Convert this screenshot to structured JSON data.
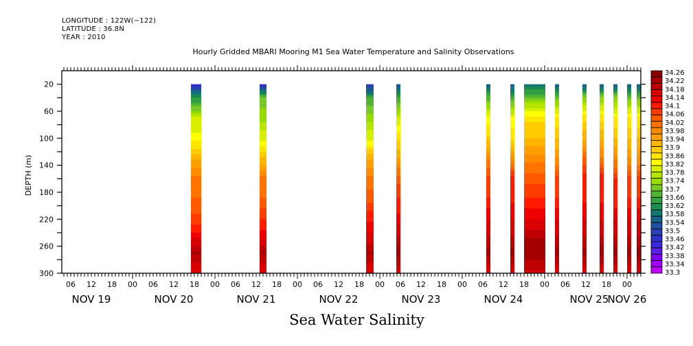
{
  "header": {
    "longitude": "LONGITUDE : 122W(−122)",
    "latitude": "LATITUDE : 36.8N",
    "year": "YEAR : 2010"
  },
  "chart_data": {
    "type": "heatmap",
    "title": "Hourly Gridded MBARI Mooring M1 Sea Water Temperature and Salinity Observations",
    "xlabel": "Sea Water Salinity",
    "ylabel": "DEPTH (m)",
    "y_ticks": [
      20,
      60,
      100,
      140,
      180,
      220,
      260,
      300
    ],
    "y_minor_ticks": [
      40,
      80,
      120,
      160,
      200,
      240,
      280
    ],
    "ylim": [
      0,
      300
    ],
    "y_inverted": true,
    "x_start_hours": 3.4,
    "x_end_hours": 172.0,
    "x_hour_labels": [
      "06",
      "12",
      "18",
      "00",
      "06",
      "12",
      "18",
      "00",
      "06",
      "12",
      "18",
      "00",
      "06",
      "12",
      "18",
      "00",
      "06",
      "12",
      "18",
      "00",
      "06",
      "12",
      "18",
      "00",
      "06",
      "12",
      "18",
      "00"
    ],
    "x_hour_label_hours": [
      6,
      12,
      18,
      24,
      30,
      36,
      42,
      48,
      54,
      60,
      66,
      72,
      78,
      84,
      90,
      96,
      102,
      108,
      114,
      120,
      126,
      132,
      138,
      144,
      150,
      156,
      162,
      168
    ],
    "x_day_labels": [
      {
        "label": "NOV 19",
        "hour": 12
      },
      {
        "label": "NOV 20",
        "hour": 36
      },
      {
        "label": "NOV 21",
        "hour": 60
      },
      {
        "label": "NOV 22",
        "hour": 84
      },
      {
        "label": "NOV 23",
        "hour": 108
      },
      {
        "label": "NOV 24",
        "hour": 132
      },
      {
        "label": "NOV 25",
        "hour": 157
      },
      {
        "label": "NOV 26",
        "hour": 168
      }
    ],
    "x_reference": "hours since NOV 19 00:00, 2010",
    "observation_columns": [
      {
        "start_hour": 41.0,
        "end_hour": 44.0,
        "profile": [
          33.46,
          33.62,
          33.78,
          33.82,
          33.92,
          34.0,
          34.02,
          34.06,
          34.14,
          34.2,
          34.14
        ]
      },
      {
        "start_hour": 61.0,
        "end_hour": 63.0,
        "profile": [
          33.44,
          33.7,
          33.74,
          33.8,
          33.9,
          34.0,
          34.02,
          34.08,
          34.14,
          34.2,
          34.14
        ]
      },
      {
        "start_hour": 92.0,
        "end_hour": 94.2,
        "profile": [
          33.46,
          33.66,
          33.74,
          33.8,
          33.92,
          34.0,
          34.04,
          34.1,
          34.16,
          34.2,
          34.14
        ]
      },
      {
        "start_hour": 100.8,
        "end_hour": 102.0,
        "profile": [
          33.52,
          33.66,
          33.78,
          33.86,
          33.94,
          34.04,
          34.08,
          34.12,
          34.18,
          34.22,
          34.14
        ]
      },
      {
        "start_hour": 127.0,
        "end_hour": 128.2,
        "profile": [
          33.54,
          33.68,
          33.82,
          33.88,
          33.98,
          34.06,
          34.08,
          34.14,
          34.18,
          34.22,
          34.14
        ]
      },
      {
        "start_hour": 134.0,
        "end_hour": 135.2,
        "profile": [
          33.54,
          33.66,
          33.82,
          33.86,
          33.96,
          34.1,
          34.1,
          34.14,
          34.18,
          34.22,
          34.14
        ]
      },
      {
        "start_hour": 138.0,
        "end_hour": 144.2,
        "profile": [
          33.56,
          33.7,
          33.86,
          33.9,
          33.98,
          34.04,
          34.08,
          34.14,
          34.2,
          34.22,
          34.16
        ]
      },
      {
        "start_hour": 147.0,
        "end_hour": 148.2,
        "profile": [
          33.54,
          33.7,
          33.84,
          33.9,
          33.96,
          34.06,
          34.08,
          34.14,
          34.18,
          34.22,
          34.14
        ]
      },
      {
        "start_hour": 155.0,
        "end_hour": 156.2,
        "profile": [
          33.54,
          33.72,
          33.86,
          33.92,
          34.02,
          34.1,
          34.1,
          34.14,
          34.18,
          34.22,
          34.14
        ]
      },
      {
        "start_hour": 160.0,
        "end_hour": 161.2,
        "profile": [
          33.54,
          33.72,
          33.86,
          33.92,
          34.0,
          34.1,
          34.1,
          34.14,
          34.18,
          34.22,
          34.14
        ]
      },
      {
        "start_hour": 164.0,
        "end_hour": 165.2,
        "profile": [
          33.54,
          33.72,
          33.84,
          33.9,
          33.98,
          34.08,
          34.08,
          34.14,
          34.18,
          34.22,
          34.14
        ]
      },
      {
        "start_hour": 168.0,
        "end_hour": 169.2,
        "profile": [
          33.54,
          33.7,
          33.84,
          33.9,
          33.96,
          34.06,
          34.08,
          34.14,
          34.18,
          34.22,
          34.14
        ]
      },
      {
        "start_hour": 170.8,
        "end_hour": 172.0,
        "profile": [
          33.54,
          33.7,
          33.84,
          33.9,
          33.96,
          34.06,
          34.08,
          34.14,
          34.18,
          34.22,
          34.14
        ]
      }
    ],
    "profile_depths": [
      20,
      40,
      70,
      100,
      130,
      160,
      190,
      220,
      250,
      270,
      300
    ],
    "colorbar": {
      "min": 33.3,
      "max": 34.26,
      "step": 0.04,
      "labels": [
        "34.26",
        "34.22",
        "34.18",
        "34.14",
        "34.1",
        "34.06",
        "34.02",
        "33.98",
        "33.94",
        "33.9",
        "33.86",
        "33.82",
        "33.78",
        "33.74",
        "33.7",
        "33.66",
        "33.62",
        "33.58",
        "33.54",
        "33.5",
        "33.46",
        "33.42",
        "33.38",
        "33.34",
        "33.3"
      ],
      "colors": [
        "#8b0000",
        "#a50000",
        "#be0000",
        "#d80000",
        "#ee0000",
        "#ff1a00",
        "#ff3c00",
        "#ff5a00",
        "#ff7300",
        "#ff8c00",
        "#ffa000",
        "#ffb400",
        "#ffcc00",
        "#ffe600",
        "#ffff00",
        "#d8f000",
        "#b4e600",
        "#96dc00",
        "#78c828",
        "#50b432",
        "#30a040",
        "#1a8c50",
        "#147870",
        "#186488",
        "#2050a0",
        "#2a40b4",
        "#3030c8",
        "#3c28dc",
        "#5a20e8",
        "#8000f0",
        "#a000f8",
        "#c000ff"
      ]
    }
  }
}
